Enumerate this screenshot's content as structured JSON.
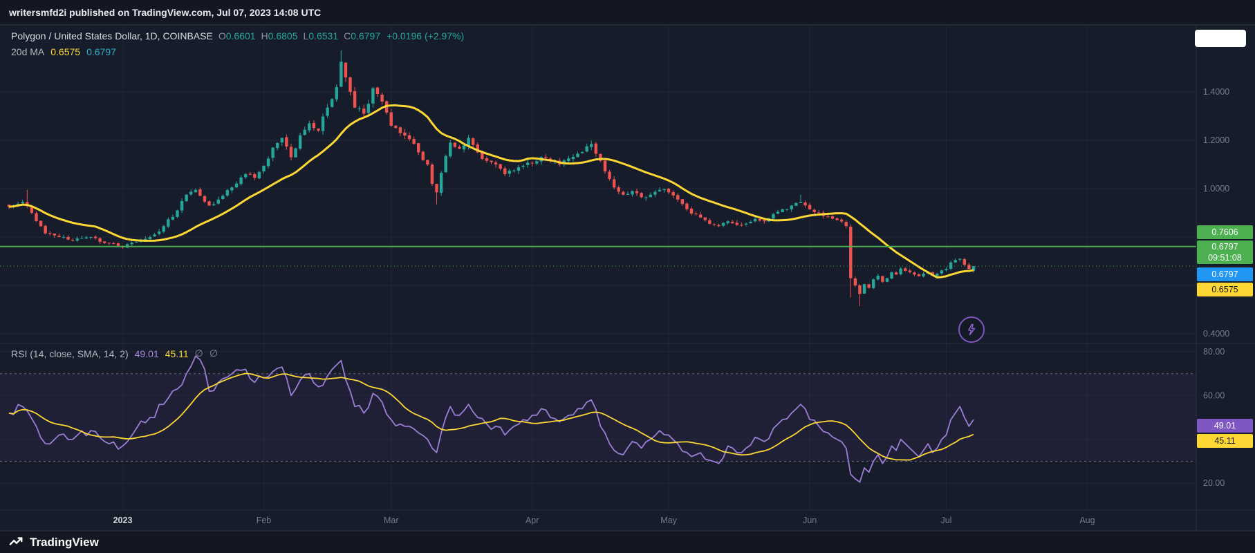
{
  "header": {
    "publish_text": "writersmfd2i published on TradingView.com, Jul 07, 2023 14:08 UTC"
  },
  "legend": {
    "title": "Polygon / United States Dollar, 1D, COINBASE",
    "open_label": "O",
    "open": "0.6601",
    "high_label": "H",
    "high": "0.6805",
    "low_label": "L",
    "low": "0.6531",
    "close_label": "C",
    "close": "0.6797",
    "change": "+0.0196 (+2.97%)",
    "ma_label": "20d MA",
    "ma_value_yellow": "0.6575",
    "ma_value_teal": "0.6797"
  },
  "rsi_legend": {
    "title": "RSI (14, close, SMA, 14, 2)",
    "value": "49.01",
    "ma_value": "45.11",
    "empty1": "∅",
    "empty2": "∅"
  },
  "price_axis": {
    "badges": {
      "level": "0.7606",
      "last": "0.6797",
      "countdown": "09:51:08",
      "ma_fast": "0.6797",
      "ma_slow": "0.6575"
    }
  },
  "rsi_axis": {
    "badges": {
      "rsi": "49.01",
      "rsi_ma": "45.11"
    }
  },
  "footer": {
    "brand": "TradingView"
  },
  "chart_data": {
    "type": "candlestick",
    "symbol": "Polygon / United States Dollar",
    "interval": "1D",
    "exchange": "COINBASE",
    "last_bar": {
      "o": 0.6601,
      "h": 0.6805,
      "l": 0.6531,
      "c": 0.6797
    },
    "change": {
      "abs": 0.0196,
      "pct": 2.97
    },
    "bars": 213,
    "start_date": "2022-12-07",
    "levels": {
      "horizontal_line": 0.7606,
      "last_price": 0.6797,
      "ma_yellow": 0.6575,
      "ma_teal": 0.6797
    },
    "ma_period": 20,
    "price_ticks": [
      {
        "label": "1.4000",
        "value": 1.4
      },
      {
        "label": "1.2000",
        "value": 1.2
      },
      {
        "label": "1.0000",
        "value": 1.0
      },
      {
        "label": "0.4000",
        "value": 0.4
      }
    ],
    "price_grid": [
      1.4,
      1.2,
      1.0,
      0.8,
      0.6,
      0.4
    ],
    "rsi_grid": [
      80,
      60,
      40,
      20
    ],
    "month_ticks": [
      {
        "label": "2023",
        "day": 25,
        "emphasis": true
      },
      {
        "label": "Feb",
        "day": 56
      },
      {
        "label": "Mar",
        "day": 84
      },
      {
        "label": "Apr",
        "day": 115
      },
      {
        "label": "May",
        "day": 145
      },
      {
        "label": "Jun",
        "day": 176
      },
      {
        "label": "Jul",
        "day": 206
      },
      {
        "label": "Aug",
        "day": 237
      }
    ],
    "close_anchors": [
      [
        0,
        0.925
      ],
      [
        3,
        0.945
      ],
      [
        5,
        0.9
      ],
      [
        8,
        0.815
      ],
      [
        11,
        0.8
      ],
      [
        14,
        0.785
      ],
      [
        18,
        0.8
      ],
      [
        21,
        0.775
      ],
      [
        25,
        0.757
      ],
      [
        28,
        0.78
      ],
      [
        31,
        0.8
      ],
      [
        34,
        0.845
      ],
      [
        37,
        0.91
      ],
      [
        39,
        0.975
      ],
      [
        41,
        0.995
      ],
      [
        44,
        0.93
      ],
      [
        46,
        0.955
      ],
      [
        49,
        1.005
      ],
      [
        52,
        1.06
      ],
      [
        54,
        1.045
      ],
      [
        56,
        1.095
      ],
      [
        58,
        1.17
      ],
      [
        60,
        1.21
      ],
      [
        62,
        1.13
      ],
      [
        64,
        1.22
      ],
      [
        66,
        1.27
      ],
      [
        68,
        1.24
      ],
      [
        70,
        1.335
      ],
      [
        72,
        1.42
      ],
      [
        73,
        1.525
      ],
      [
        74,
        1.46
      ],
      [
        75,
        1.4
      ],
      [
        76,
        1.335
      ],
      [
        78,
        1.31
      ],
      [
        80,
        1.415
      ],
      [
        82,
        1.36
      ],
      [
        84,
        1.26
      ],
      [
        86,
        1.23
      ],
      [
        88,
        1.205
      ],
      [
        90,
        1.15
      ],
      [
        92,
        1.1
      ],
      [
        93,
        1.02
      ],
      [
        94,
        0.985
      ],
      [
        95,
        1.065
      ],
      [
        96,
        1.135
      ],
      [
        97,
        1.19
      ],
      [
        99,
        1.165
      ],
      [
        101,
        1.21
      ],
      [
        103,
        1.15
      ],
      [
        105,
        1.115
      ],
      [
        107,
        1.1
      ],
      [
        109,
        1.06
      ],
      [
        111,
        1.075
      ],
      [
        113,
        1.095
      ],
      [
        115,
        1.105
      ],
      [
        117,
        1.13
      ],
      [
        119,
        1.115
      ],
      [
        121,
        1.1
      ],
      [
        123,
        1.125
      ],
      [
        125,
        1.145
      ],
      [
        127,
        1.175
      ],
      [
        128,
        1.185
      ],
      [
        130,
        1.115
      ],
      [
        132,
        1.04
      ],
      [
        133,
        1.005
      ],
      [
        135,
        0.975
      ],
      [
        137,
        0.99
      ],
      [
        139,
        0.965
      ],
      [
        141,
        0.975
      ],
      [
        143,
        0.995
      ],
      [
        145,
        0.985
      ],
      [
        147,
        0.955
      ],
      [
        149,
        0.915
      ],
      [
        151,
        0.895
      ],
      [
        153,
        0.87
      ],
      [
        156,
        0.845
      ],
      [
        158,
        0.865
      ],
      [
        160,
        0.85
      ],
      [
        162,
        0.855
      ],
      [
        164,
        0.875
      ],
      [
        166,
        0.865
      ],
      [
        168,
        0.895
      ],
      [
        170,
        0.915
      ],
      [
        172,
        0.93
      ],
      [
        174,
        0.945
      ],
      [
        176,
        0.915
      ],
      [
        178,
        0.9
      ],
      [
        180,
        0.885
      ],
      [
        182,
        0.87
      ],
      [
        184,
        0.845
      ],
      [
        185,
        0.63
      ],
      [
        186,
        0.6
      ],
      [
        187,
        0.565
      ],
      [
        188,
        0.605
      ],
      [
        189,
        0.59
      ],
      [
        190,
        0.625
      ],
      [
        191,
        0.64
      ],
      [
        192,
        0.615
      ],
      [
        193,
        0.63
      ],
      [
        194,
        0.655
      ],
      [
        195,
        0.645
      ],
      [
        196,
        0.67
      ],
      [
        197,
        0.66
      ],
      [
        198,
        0.655
      ],
      [
        199,
        0.645
      ],
      [
        200,
        0.638
      ],
      [
        201,
        0.648
      ],
      [
        202,
        0.655
      ],
      [
        203,
        0.64
      ],
      [
        204,
        0.648
      ],
      [
        205,
        0.662
      ],
      [
        206,
        0.668
      ],
      [
        207,
        0.695
      ],
      [
        208,
        0.705
      ],
      [
        209,
        0.71
      ],
      [
        210,
        0.685
      ],
      [
        211,
        0.668
      ],
      [
        212,
        0.6797
      ]
    ],
    "wick_overrides": {
      "4": {
        "high": 0.995
      },
      "73": {
        "high": 1.572
      },
      "94": {
        "low": 0.935
      },
      "174": {
        "high": 0.975
      },
      "185": {
        "low": 0.55
      },
      "187": {
        "low": 0.514
      }
    },
    "rsi": {
      "title": "RSI (14, close, SMA, 14, 2)",
      "period": 14,
      "ma_period": 14,
      "bands": [
        70,
        30
      ],
      "ticks": [
        {
          "label": "80.00",
          "value": 80
        },
        {
          "label": "60.00",
          "value": 60
        },
        {
          "label": "20.00",
          "value": 20
        }
      ],
      "last": 49.01,
      "ma_last": 45.11,
      "anchors": [
        [
          0,
          52
        ],
        [
          3,
          55
        ],
        [
          6,
          46
        ],
        [
          8,
          38
        ],
        [
          11,
          42
        ],
        [
          14,
          40
        ],
        [
          18,
          44
        ],
        [
          21,
          39
        ],
        [
          25,
          37
        ],
        [
          28,
          45
        ],
        [
          31,
          50
        ],
        [
          34,
          56
        ],
        [
          37,
          63
        ],
        [
          39,
          70
        ],
        [
          41,
          78
        ],
        [
          43,
          72
        ],
        [
          44,
          62
        ],
        [
          46,
          66
        ],
        [
          49,
          70
        ],
        [
          52,
          72
        ],
        [
          54,
          66
        ],
        [
          56,
          68
        ],
        [
          58,
          71
        ],
        [
          60,
          73
        ],
        [
          62,
          60
        ],
        [
          64,
          67
        ],
        [
          66,
          70
        ],
        [
          68,
          64
        ],
        [
          70,
          69
        ],
        [
          72,
          74
        ],
        [
          73,
          76
        ],
        [
          75,
          62
        ],
        [
          76,
          55
        ],
        [
          78,
          52
        ],
        [
          80,
          61
        ],
        [
          82,
          57
        ],
        [
          84,
          49
        ],
        [
          86,
          47
        ],
        [
          88,
          46
        ],
        [
          90,
          43
        ],
        [
          92,
          40
        ],
        [
          93,
          36
        ],
        [
          94,
          34
        ],
        [
          95,
          43
        ],
        [
          96,
          50
        ],
        [
          97,
          55
        ],
        [
          99,
          51
        ],
        [
          101,
          56
        ],
        [
          103,
          50
        ],
        [
          105,
          47
        ],
        [
          107,
          46
        ],
        [
          109,
          42
        ],
        [
          111,
          46
        ],
        [
          113,
          49
        ],
        [
          115,
          51
        ],
        [
          117,
          54
        ],
        [
          119,
          50
        ],
        [
          121,
          48
        ],
        [
          123,
          51
        ],
        [
          125,
          54
        ],
        [
          127,
          57
        ],
        [
          128,
          58
        ],
        [
          130,
          46
        ],
        [
          132,
          38
        ],
        [
          133,
          35
        ],
        [
          135,
          33
        ],
        [
          137,
          39
        ],
        [
          139,
          36
        ],
        [
          141,
          40
        ],
        [
          143,
          44
        ],
        [
          145,
          42
        ],
        [
          147,
          38
        ],
        [
          149,
          34
        ],
        [
          151,
          33
        ],
        [
          153,
          31
        ],
        [
          156,
          29
        ],
        [
          158,
          37
        ],
        [
          160,
          34
        ],
        [
          162,
          36
        ],
        [
          164,
          41
        ],
        [
          166,
          39
        ],
        [
          168,
          45
        ],
        [
          170,
          49
        ],
        [
          172,
          52
        ],
        [
          174,
          56
        ],
        [
          176,
          49
        ],
        [
          178,
          46
        ],
        [
          180,
          43
        ],
        [
          182,
          40
        ],
        [
          184,
          36
        ],
        [
          185,
          24
        ],
        [
          186,
          22
        ],
        [
          187,
          20.5
        ],
        [
          188,
          27
        ],
        [
          189,
          25
        ],
        [
          190,
          30
        ],
        [
          191,
          33
        ],
        [
          192,
          29
        ],
        [
          193,
          32
        ],
        [
          194,
          37
        ],
        [
          195,
          35
        ],
        [
          196,
          40
        ],
        [
          197,
          38
        ],
        [
          198,
          36
        ],
        [
          199,
          34
        ],
        [
          200,
          32
        ],
        [
          201,
          35
        ],
        [
          202,
          38
        ],
        [
          203,
          34
        ],
        [
          204,
          36
        ],
        [
          205,
          40
        ],
        [
          206,
          42
        ],
        [
          207,
          49
        ],
        [
          208,
          52
        ],
        [
          209,
          55
        ],
        [
          210,
          50
        ],
        [
          211,
          46
        ],
        [
          212,
          49.01
        ]
      ]
    },
    "colors": {
      "up": "#26a69a",
      "down": "#ef5350",
      "ma": "#fdd835",
      "level_line": "#4caf50",
      "rsi": "#9b7fd4",
      "rsi_ma": "#fdd835",
      "last_badge": "#4caf50",
      "ma_fast_badge": "#2196f3",
      "ma_slow_badge": "#fdd835",
      "rsi_badge": "#7e57c2"
    }
  }
}
